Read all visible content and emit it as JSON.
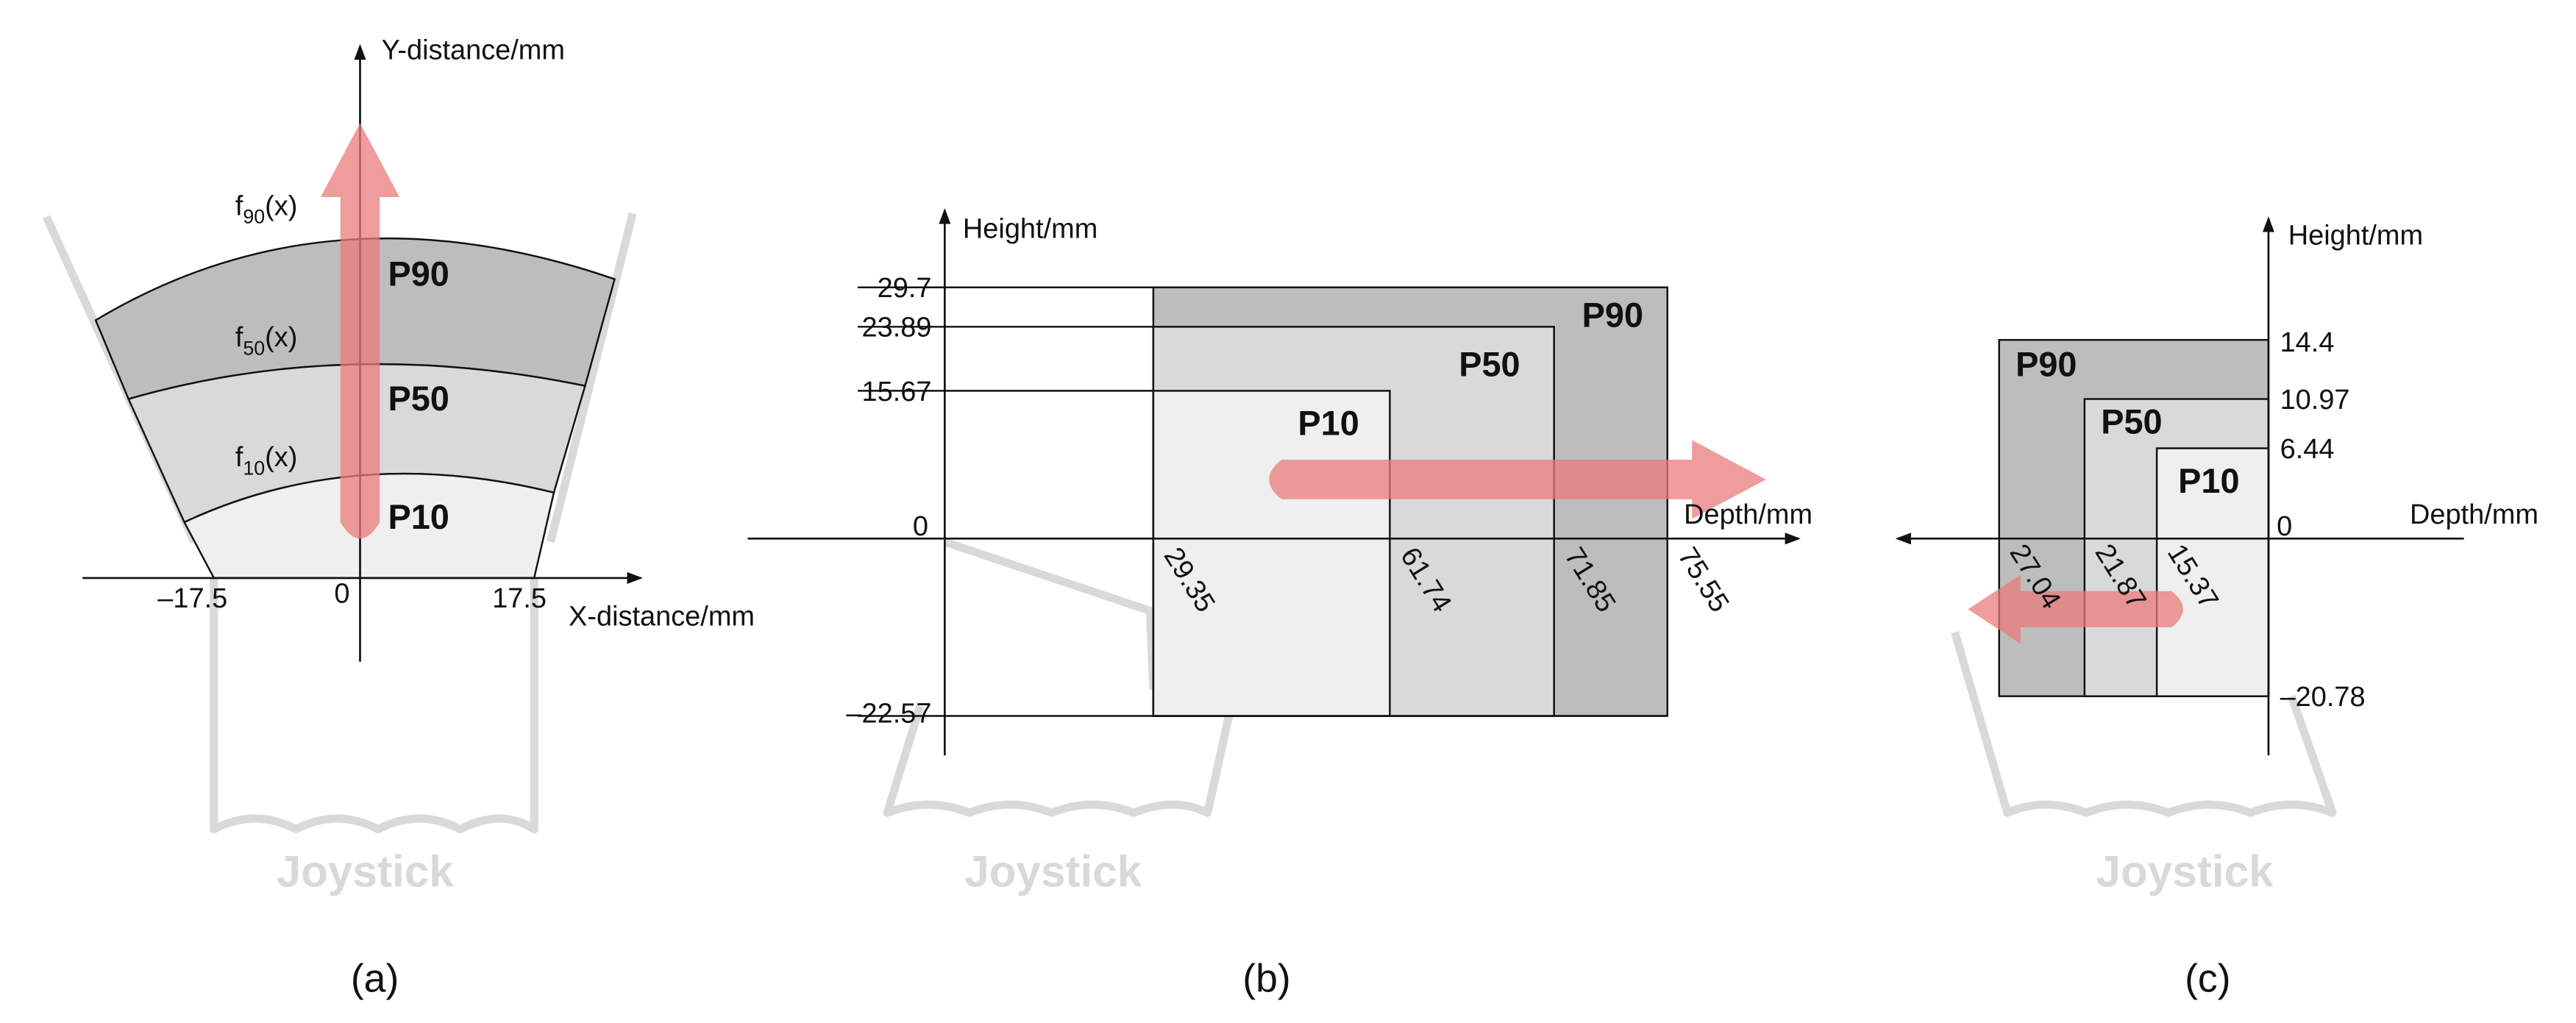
{
  "panels": [
    {
      "caption": "(a)",
      "y_axis": "Y-distance/mm",
      "x_axis": "X-distance/mm",
      "x_labels": [
        "–17.5",
        "0",
        "17.5"
      ],
      "curves": [
        {
          "f": "f",
          "sub": "90",
          "arg": "(x)"
        },
        {
          "f": "f",
          "sub": "50",
          "arg": "(x)"
        },
        {
          "f": "f",
          "sub": "10",
          "arg": "(x)"
        }
      ],
      "regions": [
        "P90",
        "P50",
        "P10"
      ],
      "watermark": "Joystick"
    },
    {
      "caption": "(b)",
      "y_axis": "Height/mm",
      "x_axis": "Depth/mm",
      "y_labels": [
        "29.7",
        "23.89",
        "15.67",
        "0",
        "–22.57"
      ],
      "x_labels": [
        "29.35",
        "61.74",
        "71.85",
        "75.55"
      ],
      "regions": [
        "P90",
        "P50",
        "P10"
      ],
      "watermark": "Joystick"
    },
    {
      "caption": "(c)",
      "y_axis": "Height/mm",
      "x_axis": "Depth/mm",
      "y_labels": [
        "14.4",
        "10.97",
        "6.44",
        "0",
        "–20.78"
      ],
      "x_labels": [
        "27.04",
        "21.87",
        "15.37"
      ],
      "regions": [
        "P90",
        "P50",
        "P10"
      ],
      "watermark": "Joystick"
    }
  ]
}
